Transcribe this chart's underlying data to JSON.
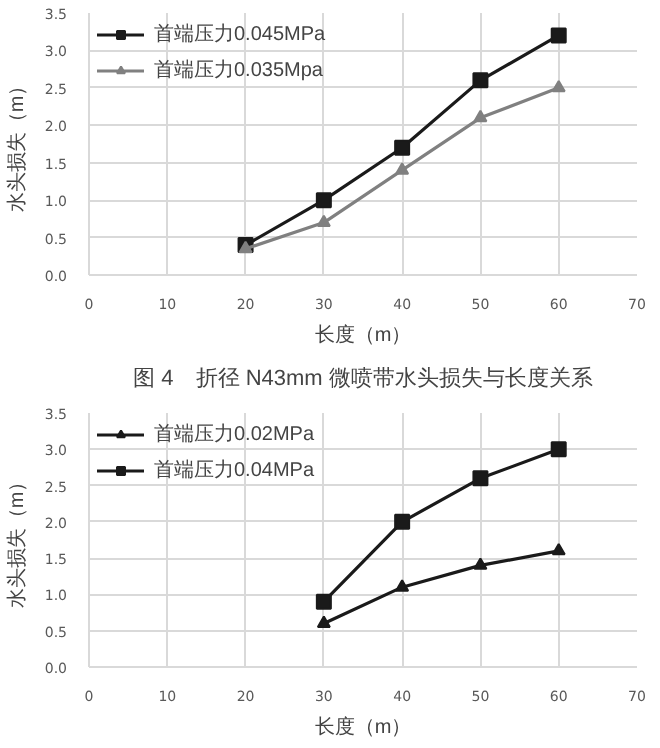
{
  "chart_data": [
    {
      "type": "line",
      "xlabel": "长度（m）",
      "ylabel": "水头损失（m）",
      "annotations": [
        "图 4　折径 N43mm 微喷带水头损失与长度关系"
      ],
      "x": [
        20,
        30,
        40,
        50,
        60
      ],
      "series": [
        {
          "name": "首端压力0.045MPa",
          "color": "#1a1a1a",
          "marker": "square",
          "values": [
            0.4,
            1.0,
            1.7,
            2.6,
            3.2
          ]
        },
        {
          "name": "首端压力0.035Mpa",
          "color": "#808080",
          "marker": "triangle",
          "values": [
            0.35,
            0.7,
            1.4,
            2.1,
            2.5
          ]
        }
      ],
      "xlim": [
        0,
        70
      ],
      "xticks": [
        0,
        10,
        20,
        30,
        40,
        50,
        60,
        70
      ],
      "ylim": [
        0,
        3.5
      ],
      "yticks": [
        {
          "value": 0,
          "label": "0.0"
        },
        {
          "value": 0.5,
          "label": "0.5"
        },
        {
          "value": 1,
          "label": "1.0"
        },
        {
          "value": 1.5,
          "label": "1.5"
        },
        {
          "value": 2,
          "label": "2.0"
        },
        {
          "value": 2.5,
          "label": "2.5"
        },
        {
          "value": 3,
          "label": "3.0"
        },
        {
          "value": 3.5,
          "label": "3.5"
        }
      ],
      "grid": true,
      "legend": "top left",
      "line_style": "solid"
    },
    {
      "type": "line",
      "xlabel": "长度（m）",
      "ylabel": "水头损失（m）",
      "x": [
        30,
        40,
        50,
        60
      ],
      "series": [
        {
          "name": "首端压力0.02MPa",
          "color": "#1a1a1a",
          "marker": "triangle",
          "values": [
            0.6,
            1.1,
            1.4,
            1.6
          ]
        },
        {
          "name": "首端压力0.04MPa",
          "color": "#1a1a1a",
          "marker": "square",
          "values": [
            0.9,
            2.0,
            2.6,
            3.0
          ]
        }
      ],
      "xlim": [
        0,
        70
      ],
      "xticks": [
        0,
        10,
        20,
        30,
        40,
        50,
        60,
        70
      ],
      "ylim": [
        0,
        3.5
      ],
      "yticks": [
        {
          "value": 0,
          "label": "0.0"
        },
        {
          "value": 0.5,
          "label": "0.5"
        },
        {
          "value": 1,
          "label": "1.0"
        },
        {
          "value": 1.5,
          "label": "1.5"
        },
        {
          "value": 2,
          "label": "2.0"
        },
        {
          "value": 2.5,
          "label": "2.5"
        },
        {
          "value": 3,
          "label": "3.0"
        },
        {
          "value": 3.5,
          "label": "3.5"
        }
      ],
      "grid": true,
      "legend": "top left",
      "line_style": "solid"
    }
  ]
}
